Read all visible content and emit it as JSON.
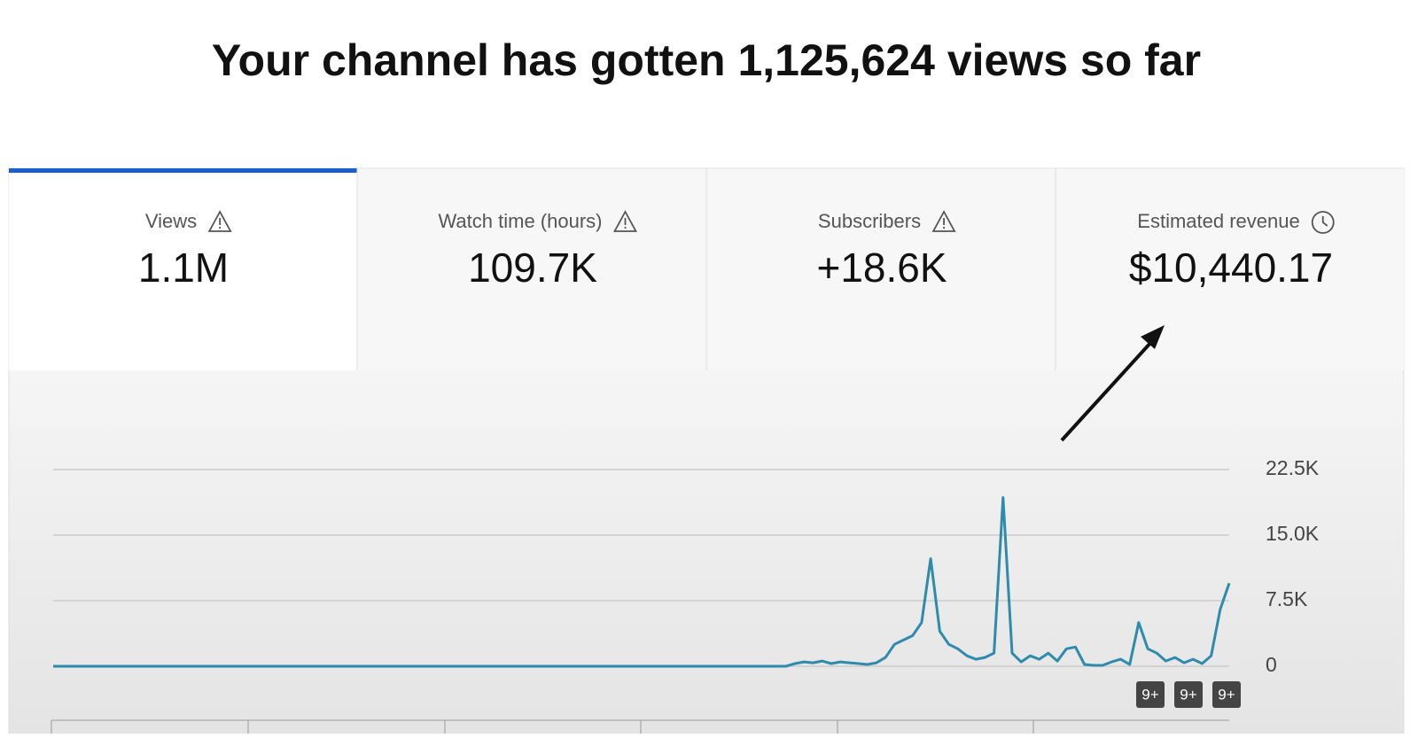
{
  "header": {
    "title": "Your channel has gotten 1,125,624 views so far"
  },
  "tabs": [
    {
      "label": "Views",
      "value": "1.1M"
    },
    {
      "label": "Watch time (hours)",
      "value": "109.7K"
    },
    {
      "label": "Subscribers",
      "value": "+18.6K"
    },
    {
      "label": "Estimated revenue",
      "value": "$10,440.17"
    }
  ],
  "chart_data": {
    "type": "line",
    "ylim": [
      0,
      22500
    ],
    "yticks": [
      0,
      {
        "value": 7500,
        "label": "7.5K"
      },
      {
        "value": 15000,
        "label": "15.0K"
      },
      {
        "value": 22500,
        "label": "22.5K"
      }
    ],
    "grid": true,
    "series": [
      {
        "color": "#2e8bab",
        "values": [
          0,
          0,
          0,
          0,
          0,
          0,
          0,
          0,
          0,
          0,
          0,
          0,
          0,
          0,
          0,
          0,
          0,
          0,
          0,
          0,
          0,
          0,
          0,
          0,
          0,
          0,
          0,
          0,
          0,
          0,
          0,
          0,
          0,
          0,
          0,
          0,
          0,
          0,
          0,
          0,
          0,
          0,
          0,
          0,
          0,
          0,
          0,
          0,
          0,
          0,
          0,
          0,
          0,
          0,
          0,
          0,
          0,
          0,
          0,
          0,
          0,
          0,
          0,
          0,
          0,
          0,
          0,
          0,
          0,
          0,
          0,
          0,
          0,
          0,
          0,
          0,
          0,
          0,
          0,
          0,
          0,
          0,
          300,
          500,
          400,
          600,
          300,
          500,
          400,
          300,
          200,
          400,
          1000,
          2500,
          3000,
          3500,
          5000,
          12300,
          4000,
          2500,
          2000,
          1200,
          800,
          1000,
          1500,
          19300,
          1500,
          500,
          1200,
          800,
          1500,
          600,
          2000,
          2200,
          200,
          100,
          100,
          500,
          800,
          200,
          5000,
          2000,
          1500,
          600,
          1000,
          400,
          800,
          300,
          1200,
          6500,
          9500
        ]
      }
    ],
    "annotations": [
      "9+",
      "9+",
      "9+"
    ]
  }
}
